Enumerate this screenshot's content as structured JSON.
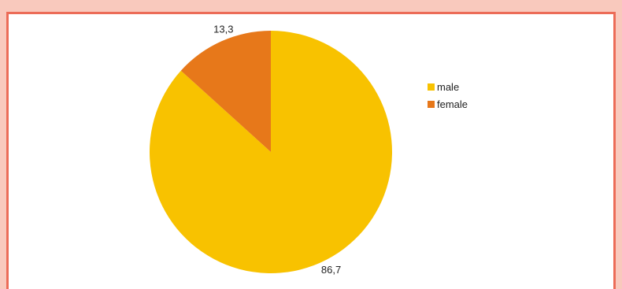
{
  "chart_data": {
    "type": "pie",
    "categories": [
      "male",
      "female"
    ],
    "values": [
      86.7,
      13.3
    ],
    "data_labels": [
      "86,7",
      "13,3"
    ],
    "colors": [
      "#f8c200",
      "#e7781a"
    ],
    "legend": {
      "placement": "right",
      "entries": [
        "male",
        "female"
      ]
    },
    "title": ""
  }
}
